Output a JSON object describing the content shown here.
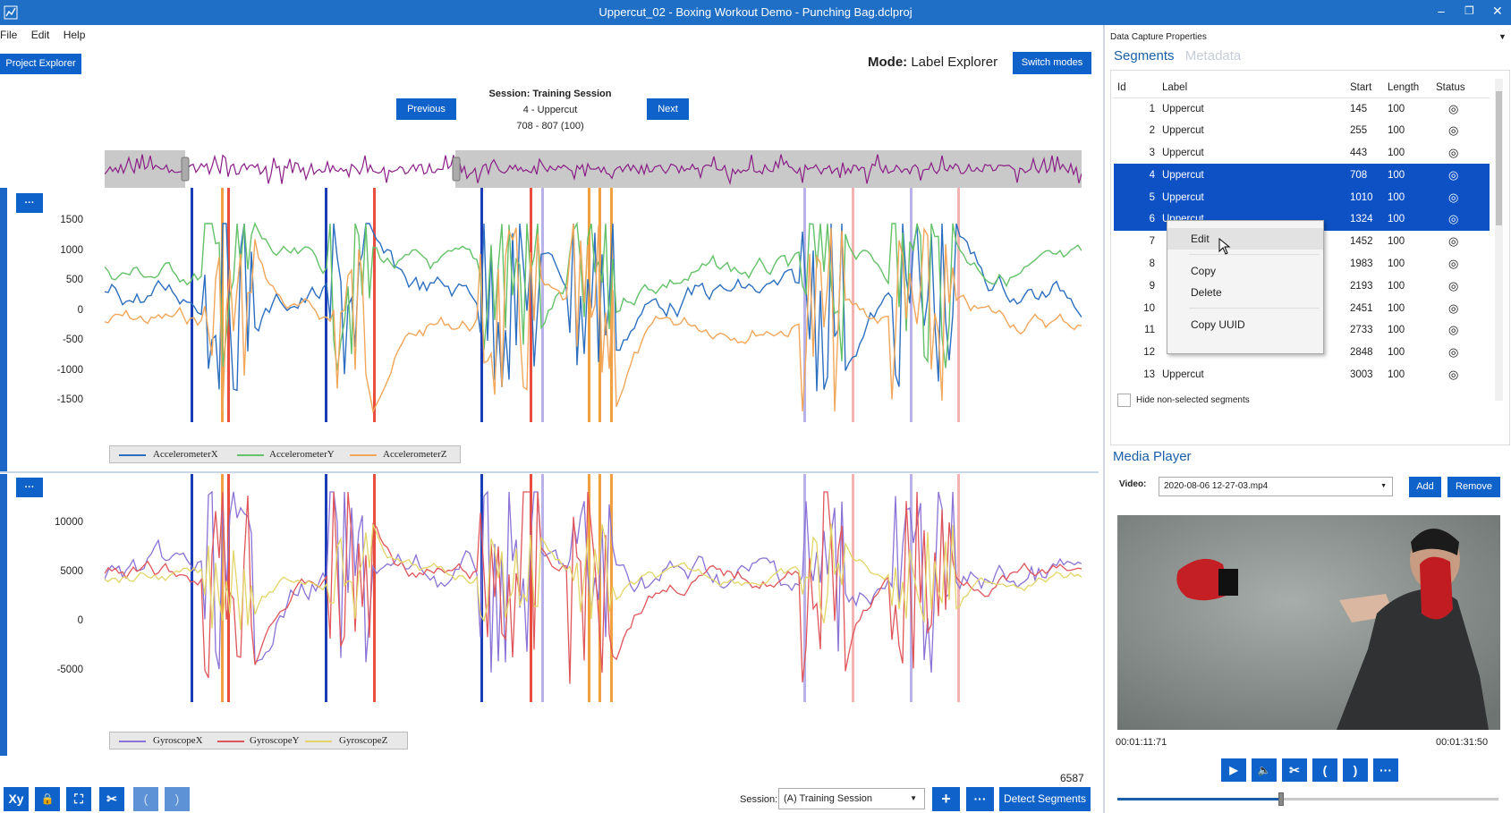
{
  "window": {
    "title": "Uppercut_02 - Boxing Workout Demo - Punching Bag.dclproj"
  },
  "menu": [
    "File",
    "Edit",
    "Help"
  ],
  "toolbar": {
    "project_explorer": "Project Explorer",
    "mode_label": "Mode:",
    "mode_value": "Label Explorer",
    "switch_modes": "Switch modes"
  },
  "session_nav": {
    "previous": "Previous",
    "next": "Next",
    "session_title": "Session: Training Session",
    "segment": "4 - Uppercut",
    "range": "708 - 807 (100)"
  },
  "plot_menu_label": "···",
  "accel_chart": {
    "y_ticks": [
      "1500",
      "1000",
      "500",
      "0",
      "-500",
      "-1000",
      "-1500"
    ],
    "legend": [
      "AccelerometerX",
      "AccelerometerY",
      "AccelerometerZ"
    ],
    "colors": [
      "#2c6fc0",
      "#63c268",
      "#f1a65a"
    ]
  },
  "gyro_chart": {
    "y_ticks": [
      "10000",
      "5000",
      "0",
      "-5000"
    ],
    "legend": [
      "GyroscopeX",
      "GyroscopeY",
      "GyroscopeZ"
    ],
    "colors": [
      "#8a72d6",
      "#e0555a",
      "#e3d567"
    ]
  },
  "bottom_bar": {
    "count": "6587",
    "session_label": "Session:",
    "session_value": "(A) Training Session",
    "add": "+",
    "more": "···",
    "detect": "Detect Segments",
    "tools": [
      "Xy",
      "🔒",
      "⛶",
      "✂",
      "(",
      ")"
    ]
  },
  "properties": {
    "header": "Data Capture Properties",
    "tabs": [
      "Segments",
      "Metadata"
    ],
    "columns": [
      "Id",
      "Label",
      "Start",
      "Length",
      "Status"
    ],
    "rows": [
      {
        "id": "1",
        "label": "Uppercut",
        "start": "145",
        "length": "100",
        "selected": false
      },
      {
        "id": "2",
        "label": "Uppercut",
        "start": "255",
        "length": "100",
        "selected": false
      },
      {
        "id": "3",
        "label": "Uppercut",
        "start": "443",
        "length": "100",
        "selected": false
      },
      {
        "id": "4",
        "label": "Uppercut",
        "start": "708",
        "length": "100",
        "selected": true
      },
      {
        "id": "5",
        "label": "Uppercut",
        "start": "1010",
        "length": "100",
        "selected": true
      },
      {
        "id": "6",
        "label": "Uppercut",
        "start": "1324",
        "length": "100",
        "selected": true
      },
      {
        "id": "7",
        "label": "",
        "start": "1452",
        "length": "100",
        "selected": false
      },
      {
        "id": "8",
        "label": "",
        "start": "1983",
        "length": "100",
        "selected": false
      },
      {
        "id": "9",
        "label": "",
        "start": "2193",
        "length": "100",
        "selected": false
      },
      {
        "id": "10",
        "label": "",
        "start": "2451",
        "length": "100",
        "selected": false
      },
      {
        "id": "11",
        "label": "",
        "start": "2733",
        "length": "100",
        "selected": false
      },
      {
        "id": "12",
        "label": "",
        "start": "2848",
        "length": "100",
        "selected": false
      },
      {
        "id": "13",
        "label": "Uppercut",
        "start": "3003",
        "length": "100",
        "selected": false
      }
    ],
    "hide_non_selected": "Hide non-selected segments"
  },
  "context_menu": [
    "Edit",
    "Copy",
    "Delete",
    "Copy UUID"
  ],
  "media": {
    "header": "Media Player",
    "video_label": "Video:",
    "video_value": "2020-08-06 12-27-03.mp4",
    "add": "Add",
    "remove": "Remove",
    "time_current": "00:01:11:71",
    "time_total": "00:01:31:50",
    "progress": 0.43
  }
}
